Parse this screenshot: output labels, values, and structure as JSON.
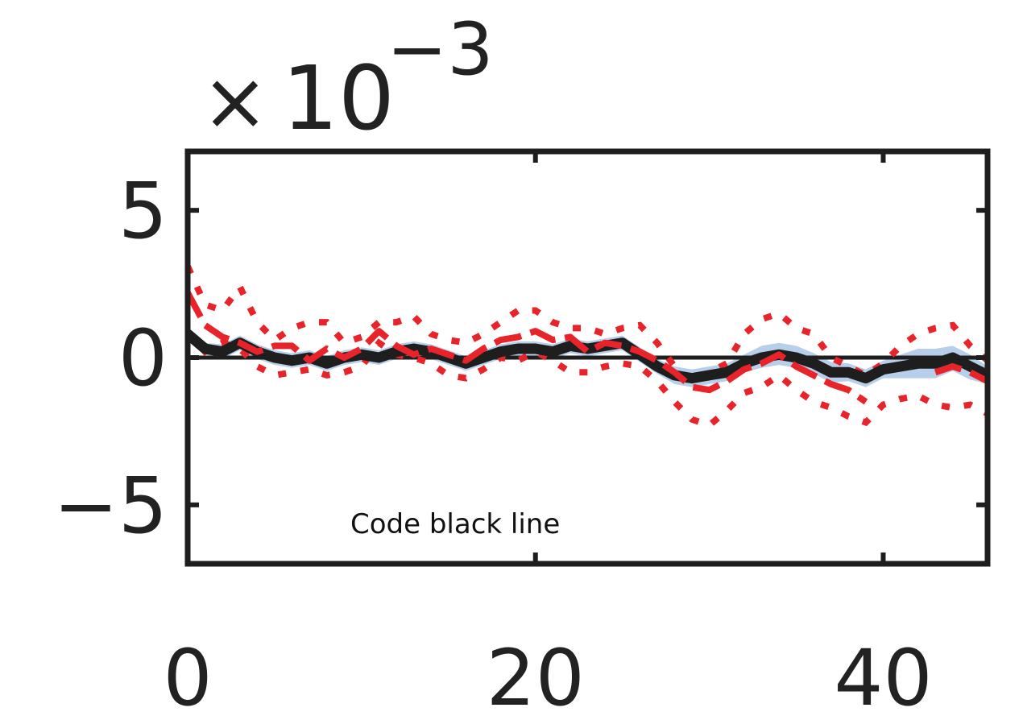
{
  "chart_data": {
    "type": "line",
    "title": "",
    "xlabel": "",
    "ylabel": "",
    "xlim": [
      0,
      46
    ],
    "ylim": [
      -7,
      7
    ],
    "y_scale_note": "×10^-3",
    "exponent": {
      "prefix": "×",
      "base": "10",
      "power": "−3"
    },
    "xticks": [
      0,
      20,
      40
    ],
    "xtick_labels": [
      "0",
      "20",
      "40"
    ],
    "yticks": [
      5,
      0,
      -5
    ],
    "ytick_labels": [
      "5",
      "0",
      "−5"
    ],
    "grid": false,
    "legend": "none",
    "annotation": "Code black line",
    "colors": {
      "black_line": "#1e1e1e",
      "band": "#b7cfea",
      "red": "#e8242a",
      "axis": "#1e1e1e"
    },
    "x": [
      0,
      1,
      2,
      3,
      4,
      5,
      6,
      7,
      8,
      9,
      10,
      11,
      12,
      13,
      14,
      15,
      16,
      17,
      18,
      19,
      20,
      21,
      22,
      23,
      24,
      25,
      26,
      27,
      28,
      29,
      30,
      31,
      32,
      33,
      34,
      35,
      36,
      37,
      38,
      39,
      40,
      41,
      42,
      43,
      44,
      45,
      46
    ],
    "zero_line": 0,
    "series": [
      {
        "role": "black",
        "values": [
          0.8,
          0.3,
          0.2,
          0.5,
          0.2,
          0.0,
          -0.1,
          0.0,
          -0.2,
          0.0,
          0.1,
          0.0,
          0.2,
          0.3,
          0.2,
          0.0,
          -0.2,
          0.0,
          0.2,
          0.3,
          0.3,
          0.2,
          0.4,
          0.3,
          0.4,
          0.5,
          0.1,
          -0.3,
          -0.6,
          -0.7,
          -0.6,
          -0.5,
          -0.2,
          0.0,
          0.1,
          0.0,
          -0.2,
          -0.5,
          -0.5,
          -0.7,
          -0.4,
          -0.3,
          -0.2,
          -0.2,
          0.0,
          -0.3,
          -0.6
        ]
      },
      {
        "role": "band",
        "upper": [
          1.0,
          0.5,
          0.45,
          0.75,
          0.45,
          0.25,
          0.15,
          0.25,
          0.05,
          0.25,
          0.35,
          0.25,
          0.45,
          0.55,
          0.45,
          0.25,
          0.05,
          0.25,
          0.45,
          0.55,
          0.55,
          0.45,
          0.65,
          0.55,
          0.65,
          0.75,
          0.35,
          -0.05,
          -0.3,
          -0.4,
          -0.3,
          -0.2,
          0.1,
          0.4,
          0.5,
          0.4,
          0.15,
          -0.15,
          -0.2,
          -0.4,
          -0.1,
          0.1,
          0.3,
          0.3,
          0.4,
          0.1,
          -0.3
        ],
        "lower": [
          0.6,
          0.1,
          -0.05,
          0.25,
          -0.05,
          -0.25,
          -0.35,
          -0.25,
          -0.45,
          -0.25,
          -0.15,
          -0.25,
          -0.05,
          0.05,
          -0.05,
          -0.25,
          -0.45,
          -0.25,
          -0.05,
          0.05,
          0.05,
          -0.05,
          0.15,
          0.05,
          0.15,
          0.25,
          -0.15,
          -0.55,
          -0.9,
          -1.0,
          -0.9,
          -0.8,
          -0.5,
          -0.35,
          -0.25,
          -0.35,
          -0.55,
          -0.85,
          -0.8,
          -1.0,
          -0.7,
          -0.7,
          -0.7,
          -0.7,
          -0.45,
          -0.75,
          -0.9
        ]
      },
      {
        "role": "red-dashed",
        "values": [
          2.2,
          1.1,
          0.7,
          0.5,
          0.2,
          0.4,
          0.4,
          -0.1,
          0.3,
          0.0,
          0.3,
          0.9,
          0.4,
          0.1,
          0.3,
          0.1,
          -0.1,
          0.3,
          0.6,
          0.7,
          0.9,
          0.6,
          0.7,
          0.2,
          0.5,
          0.4,
          0.2,
          -0.1,
          -0.5,
          -1.0,
          -1.1,
          -0.8,
          -0.4,
          -0.2,
          0.1,
          -0.3,
          -0.6,
          -0.9,
          -1.1,
          -1.5,
          null,
          null,
          null,
          -0.5,
          -0.3,
          -0.5,
          -0.8
        ]
      },
      {
        "role": "red-dotted-upper",
        "values": [
          3.1,
          1.8,
          1.6,
          2.4,
          1.2,
          0.6,
          1.0,
          1.2,
          1.2,
          0.5,
          0.7,
          1.2,
          1.2,
          1.4,
          0.8,
          0.6,
          0.5,
          0.8,
          1.2,
          1.6,
          1.6,
          1.2,
          1.0,
          1.0,
          0.8,
          1.0,
          1.1,
          0.5,
          -0.3,
          -0.9,
          -0.5,
          -0.2,
          0.8,
          1.3,
          1.5,
          1.0,
          0.8,
          0.0,
          -0.3,
          -0.6,
          -0.2,
          0.4,
          0.8,
          1.0,
          1.1,
          0.4,
          -0.1
        ]
      },
      {
        "role": "red-dotted-lower",
        "values": [
          0.9,
          0.2,
          0.5,
          0.3,
          -0.3,
          -0.6,
          -0.5,
          -0.4,
          -0.6,
          -0.5,
          -0.3,
          0.5,
          0.1,
          0.0,
          -0.2,
          -0.6,
          -0.7,
          -0.4,
          0.0,
          -0.1,
          0.2,
          -0.1,
          -0.5,
          -0.5,
          -0.3,
          -0.2,
          -0.3,
          -0.8,
          -1.5,
          -2.1,
          -2.3,
          -1.8,
          -1.2,
          -1.0,
          -0.6,
          -1.1,
          -1.5,
          -1.7,
          -2.0,
          -2.2,
          -1.6,
          -1.4,
          -1.3,
          -1.6,
          -1.7,
          -1.6,
          -1.9
        ]
      }
    ]
  }
}
